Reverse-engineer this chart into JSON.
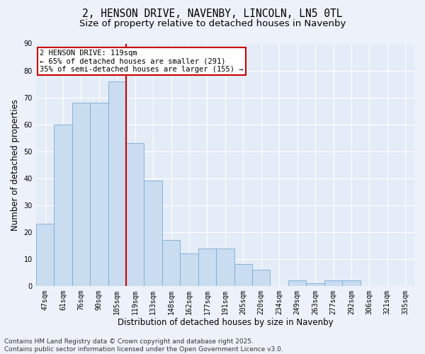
{
  "title1": "2, HENSON DRIVE, NAVENBY, LINCOLN, LN5 0TL",
  "title2": "Size of property relative to detached houses in Navenby",
  "xlabel": "Distribution of detached houses by size in Navenby",
  "ylabel": "Number of detached properties",
  "categories": [
    "47sqm",
    "61sqm",
    "76sqm",
    "90sqm",
    "105sqm",
    "119sqm",
    "133sqm",
    "148sqm",
    "162sqm",
    "177sqm",
    "191sqm",
    "205sqm",
    "220sqm",
    "234sqm",
    "249sqm",
    "263sqm",
    "277sqm",
    "292sqm",
    "306sqm",
    "321sqm",
    "335sqm"
  ],
  "values": [
    23,
    60,
    68,
    68,
    76,
    53,
    39,
    17,
    12,
    14,
    14,
    8,
    6,
    0,
    2,
    1,
    2,
    2,
    0,
    0,
    0
  ],
  "bar_color": "#c9dcf0",
  "bar_edge_color": "#7aadd4",
  "vline_index": 5,
  "vline_color": "#cc0000",
  "annotation_text": "2 HENSON DRIVE: 119sqm\n← 65% of detached houses are smaller (291)\n35% of semi-detached houses are larger (155) →",
  "annotation_box_facecolor": "#ffffff",
  "annotation_box_edgecolor": "#cc0000",
  "footer": "Contains HM Land Registry data © Crown copyright and database right 2025.\nContains public sector information licensed under the Open Government Licence v3.0.",
  "ylim": [
    0,
    90
  ],
  "yticks": [
    0,
    10,
    20,
    30,
    40,
    50,
    60,
    70,
    80,
    90
  ],
  "bg_color": "#edf2fa",
  "plot_bg_color": "#e4ecf7",
  "grid_color": "#ffffff",
  "title1_fontsize": 10.5,
  "title2_fontsize": 9.5,
  "tick_fontsize": 7,
  "label_fontsize": 8.5,
  "annotation_fontsize": 7.5,
  "footer_fontsize": 6.5
}
